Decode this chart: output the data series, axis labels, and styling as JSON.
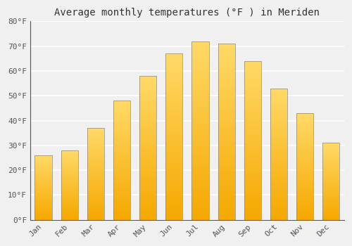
{
  "title": "Average monthly temperatures (°F ) in Meriden",
  "months": [
    "Jan",
    "Feb",
    "Mar",
    "Apr",
    "May",
    "Jun",
    "Jul",
    "Aug",
    "Sep",
    "Oct",
    "Nov",
    "Dec"
  ],
  "values": [
    26,
    28,
    37,
    48,
    58,
    67,
    72,
    71,
    64,
    53,
    43,
    31
  ],
  "ylim": [
    0,
    80
  ],
  "yticks": [
    0,
    10,
    20,
    30,
    40,
    50,
    60,
    70,
    80
  ],
  "ytick_labels": [
    "0°F",
    "10°F",
    "20°F",
    "30°F",
    "40°F",
    "50°F",
    "60°F",
    "70°F",
    "80°F"
  ],
  "background_color": "#f0f0f0",
  "grid_color": "#ffffff",
  "bar_color_bottom": "#F5A800",
  "bar_color_top": "#FFD966",
  "bar_edge_color": "#888888",
  "bar_width": 0.65,
  "title_fontsize": 10,
  "tick_fontsize": 8,
  "tick_color": "#555555",
  "n_segments": 80
}
